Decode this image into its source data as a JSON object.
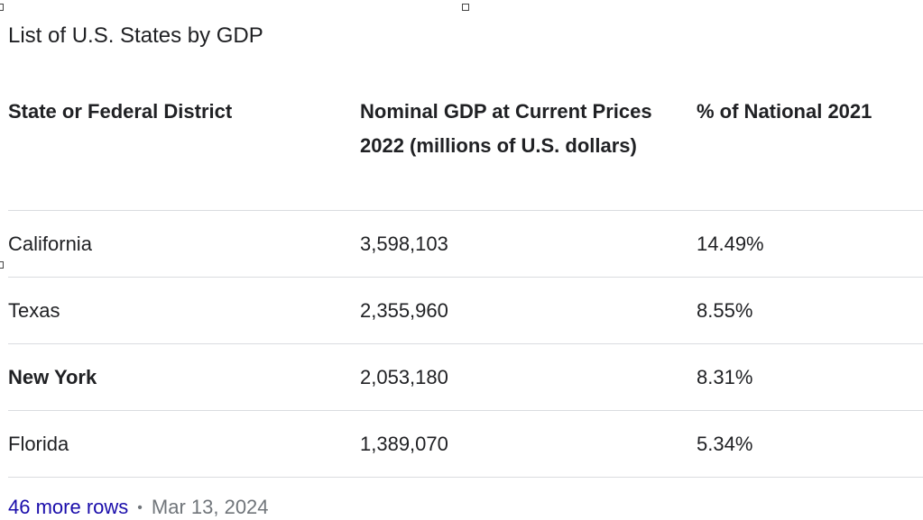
{
  "title": "List of U.S. States by GDP",
  "table": {
    "headers": [
      "State or Federal District",
      "Nominal GDP at Current Prices 2022 (millions of U.S. dollars)",
      "% of National 2021"
    ],
    "rows": [
      {
        "state": "California",
        "gdp": "3,598,103",
        "pct": "14.49%"
      },
      {
        "state": "Texas",
        "gdp": "2,355,960",
        "pct": "8.55%"
      },
      {
        "state": "New York",
        "gdp": "2,053,180",
        "pct": "8.31%"
      },
      {
        "state": "Florida",
        "gdp": "1,389,070",
        "pct": "5.34%"
      }
    ]
  },
  "footer": {
    "more_rows": "46 more rows",
    "separator": "•",
    "date": "Mar 13, 2024"
  }
}
